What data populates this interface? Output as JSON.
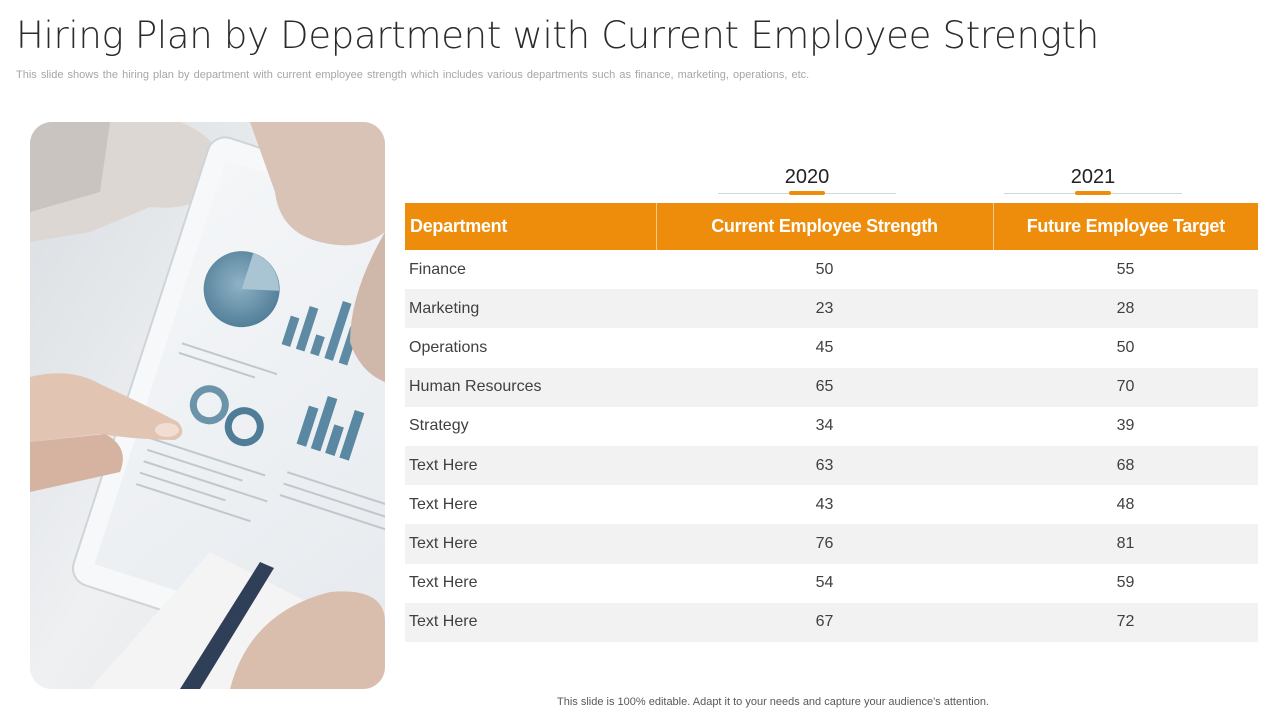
{
  "slide": {
    "title": "Hiring Plan by Department with Current Employee Strength",
    "subtitle": "This slide shows the hiring plan by department with current employee strength which includes various  departments  such as finance, marketing, operations, etc.",
    "footer": "This slide is 100% editable. Adapt it to your needs and capture your audience's attention."
  },
  "years": [
    "2020",
    "2021"
  ],
  "table": {
    "columns": [
      "Department",
      "Current Employee Strength",
      "Future Employee Target"
    ],
    "rows": [
      [
        "Finance",
        "50",
        "55"
      ],
      [
        "Marketing",
        "23",
        "28"
      ],
      [
        "Operations",
        "45",
        "50"
      ],
      [
        "Human Resources",
        "65",
        "70"
      ],
      [
        "Strategy",
        "34",
        "39"
      ],
      [
        "Text Here",
        "63",
        "68"
      ],
      [
        "Text Here",
        "43",
        "48"
      ],
      [
        "Text Here",
        "76",
        "81"
      ],
      [
        "Text Here",
        "54",
        "59"
      ],
      [
        "Text Here",
        "67",
        "72"
      ]
    ]
  },
  "colors": {
    "accent": "#ee8d0b",
    "row_alt": "#f2f2f2"
  },
  "image": {
    "icon": "tablet-with-charts-photo"
  }
}
